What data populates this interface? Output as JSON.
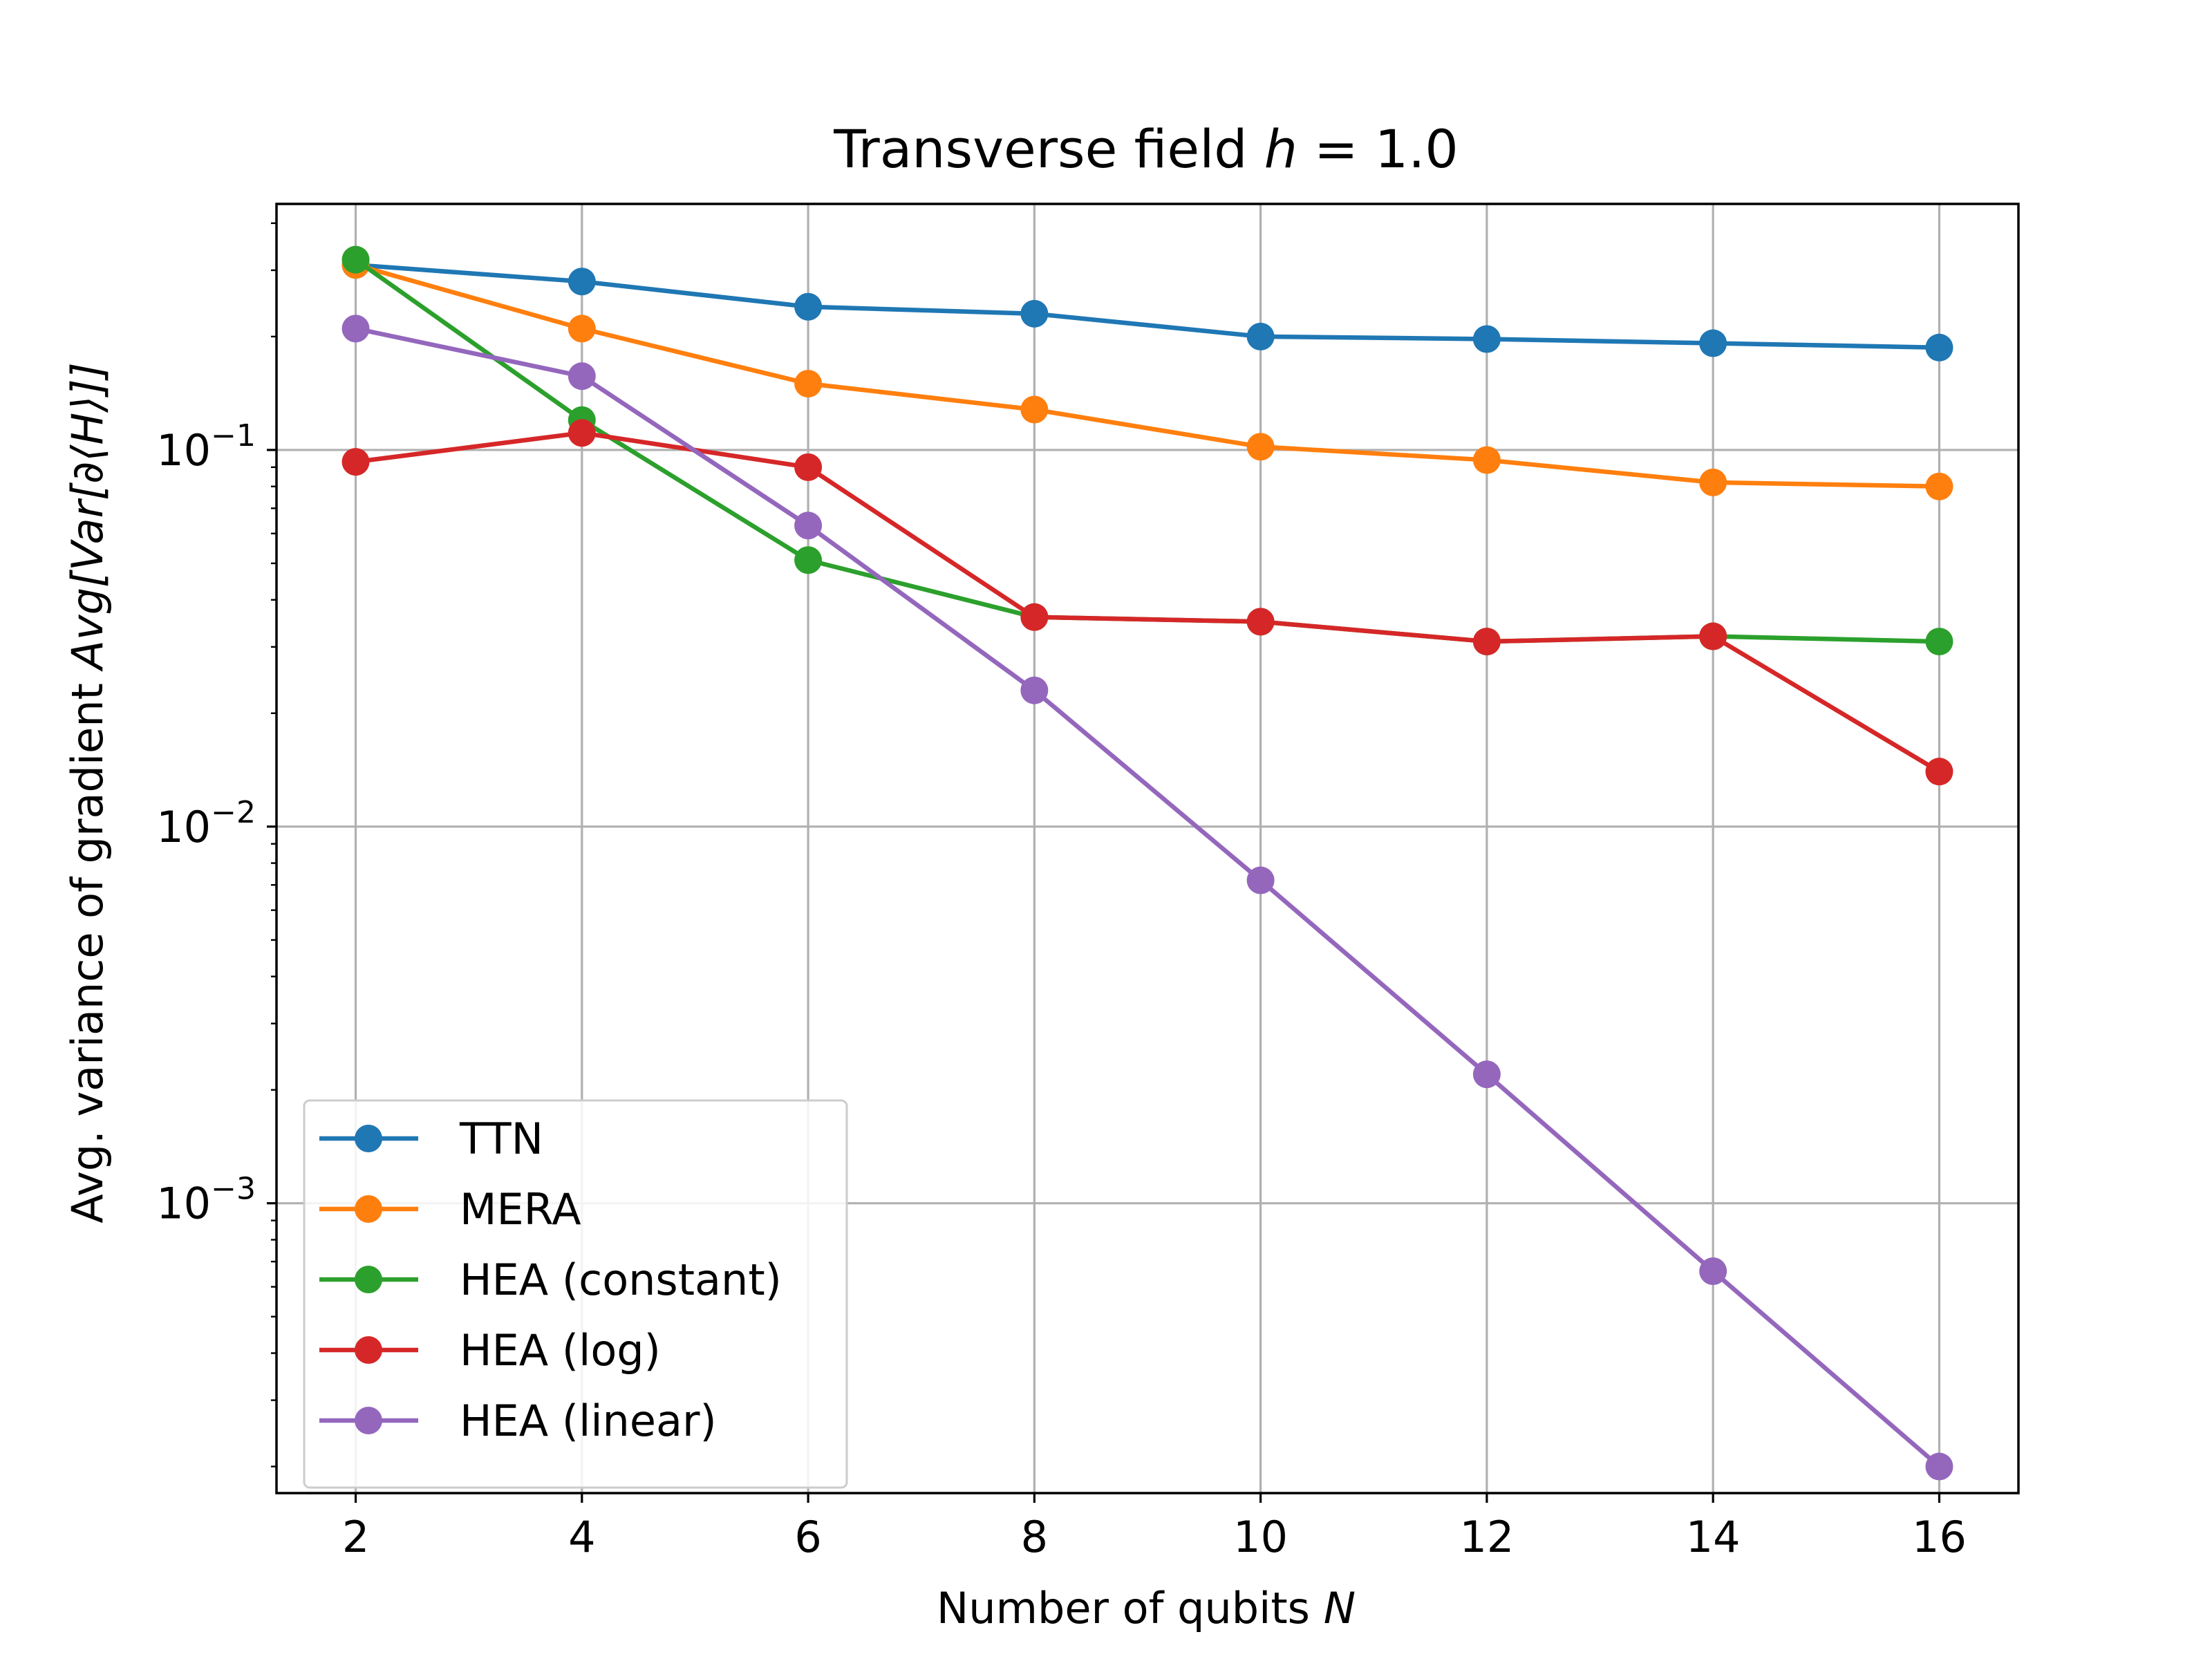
{
  "chart_data": {
    "type": "line",
    "title_prefix": "Transverse field ",
    "title_var": "h",
    "title_suffix": " = 1.0",
    "xlabel_prefix": "Number of qubits ",
    "xlabel_var": "N",
    "ylabel_prefix": "Avg. variance of gradient ",
    "ylabel_math": "Avg[Var[∂⟨H⟩]]",
    "x": [
      2,
      4,
      6,
      8,
      10,
      12,
      14,
      16
    ],
    "xlim": [
      1.3,
      16.7
    ],
    "ylim": [
      0.00017,
      0.45
    ],
    "yscale": "log",
    "xticks": [
      "2",
      "4",
      "6",
      "8",
      "10",
      "12",
      "14",
      "16"
    ],
    "yticks": [
      {
        "value": 0.1,
        "base": "10",
        "exp": "−1"
      },
      {
        "value": 0.01,
        "base": "10",
        "exp": "−2"
      },
      {
        "value": 0.001,
        "base": "10",
        "exp": "−3"
      }
    ],
    "grid": true,
    "legend_position": "lower-left",
    "series": [
      {
        "name": "TTN",
        "color": "#1f77b4",
        "values": [
          0.31,
          0.28,
          0.24,
          0.23,
          0.2,
          0.197,
          0.192,
          0.187
        ]
      },
      {
        "name": "MERA",
        "color": "#ff7f0e",
        "values": [
          0.31,
          0.21,
          0.15,
          0.128,
          0.102,
          0.094,
          0.082,
          0.08
        ]
      },
      {
        "name": "HEA (constant)",
        "color": "#2ca02c",
        "values": [
          0.32,
          0.12,
          0.051,
          0.036,
          0.035,
          0.031,
          0.032,
          0.031
        ]
      },
      {
        "name": "HEA (log)",
        "color": "#d62728",
        "values": [
          0.093,
          0.111,
          0.09,
          0.036,
          0.035,
          0.031,
          0.032,
          0.014
        ]
      },
      {
        "name": "HEA (linear)",
        "color": "#9467bd",
        "values": [
          0.21,
          0.157,
          0.063,
          0.023,
          0.0072,
          0.0022,
          0.00066,
          0.0002
        ]
      }
    ]
  }
}
